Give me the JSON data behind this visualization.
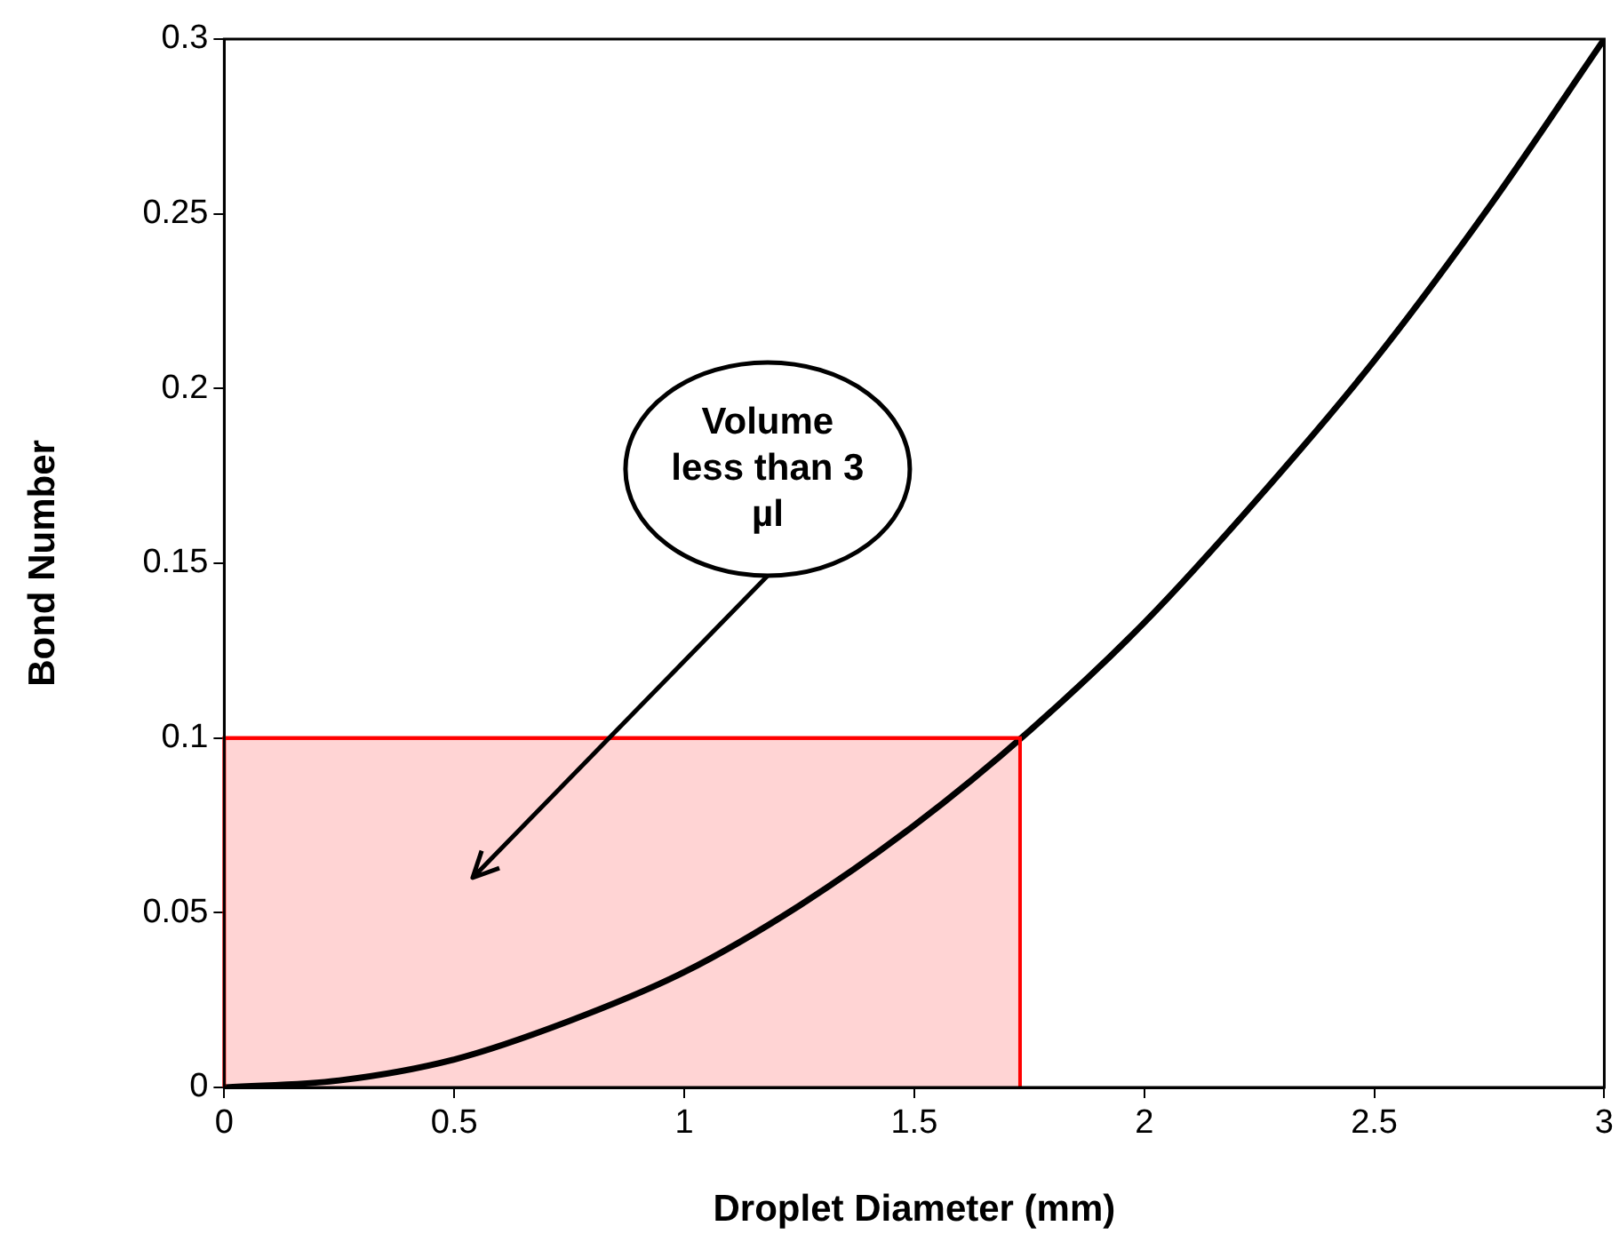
{
  "chart_data": {
    "type": "line",
    "xlabel": "Droplet Diameter (mm)",
    "ylabel": "Bond Number",
    "x": [
      0,
      0.25,
      0.5,
      0.75,
      1,
      1.25,
      1.5,
      1.75,
      2,
      2.25,
      2.5,
      2.75,
      3
    ],
    "series": [
      {
        "type": "line",
        "color": "#000000",
        "values": [
          0,
          0.002,
          0.008,
          0.019,
          0.033,
          0.052,
          0.075,
          0.102,
          0.133,
          0.169,
          0.208,
          0.252,
          0.3
        ]
      },
      {
        "type": "area",
        "color": "#ff0000",
        "x": [
          0,
          1.73
        ],
        "values": [
          0.1,
          0.1
        ]
      }
    ],
    "annotations": [
      "Volume less than 3 µl"
    ],
    "xlim": [
      0,
      3
    ],
    "xticks": [
      0,
      0.5,
      1,
      1.5,
      2,
      2.5,
      3
    ],
    "ylim": [
      0,
      0.3
    ],
    "yticks": [
      0,
      0.05,
      0.1,
      0.15,
      0.2,
      0.25,
      0.3
    ],
    "grid": false,
    "legend": false,
    "marker": "none",
    "line_style": "solid"
  }
}
